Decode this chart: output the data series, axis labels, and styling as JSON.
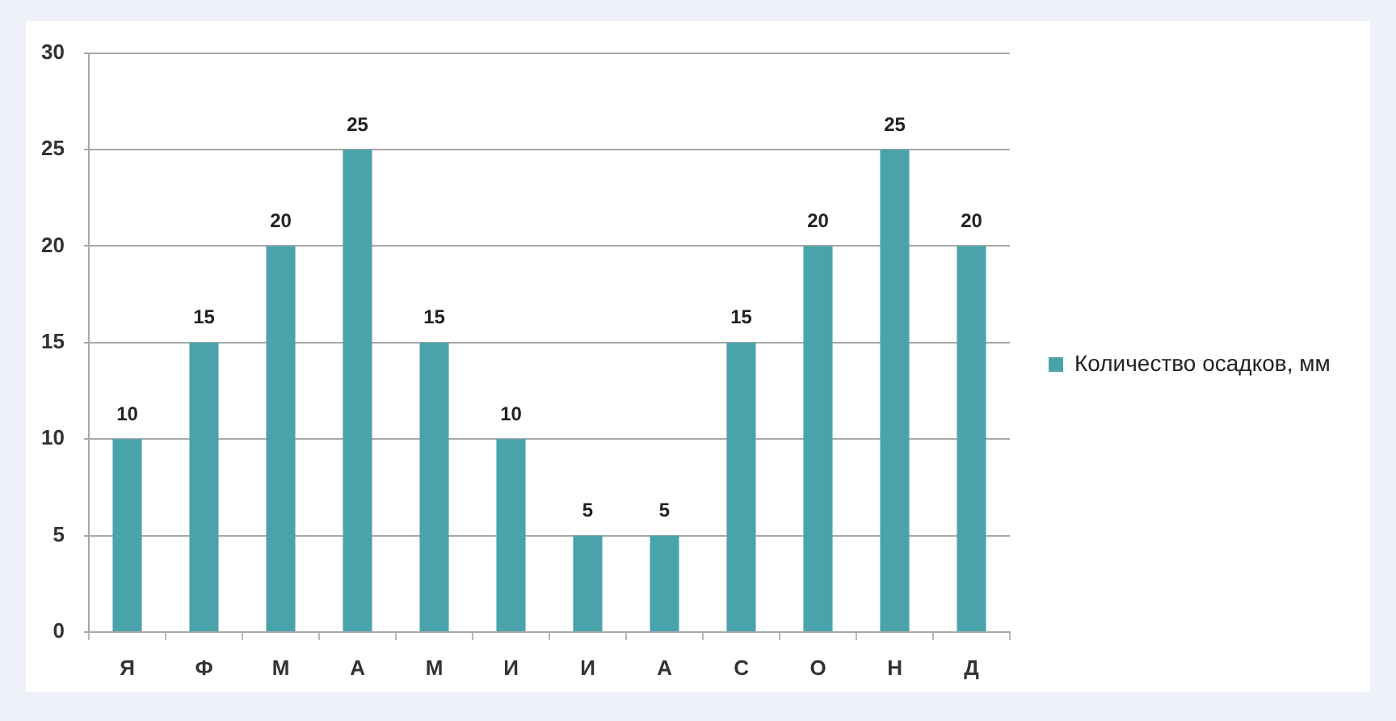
{
  "chart_data": {
    "type": "bar",
    "categories": [
      "Я",
      "Ф",
      "М",
      "А",
      "М",
      "И",
      "И",
      "А",
      "С",
      "О",
      "Н",
      "Д"
    ],
    "series": [
      {
        "name": "Количество осадков, мм",
        "color": "#4aa3ab",
        "values": [
          10,
          15,
          20,
          25,
          15,
          10,
          5,
          5,
          15,
          20,
          25,
          20
        ]
      }
    ],
    "ylim": [
      0,
      30
    ],
    "yticks": [
      0,
      5,
      10,
      15,
      20,
      25,
      30
    ],
    "grid": "y",
    "legend": "right",
    "data_labels": true
  }
}
